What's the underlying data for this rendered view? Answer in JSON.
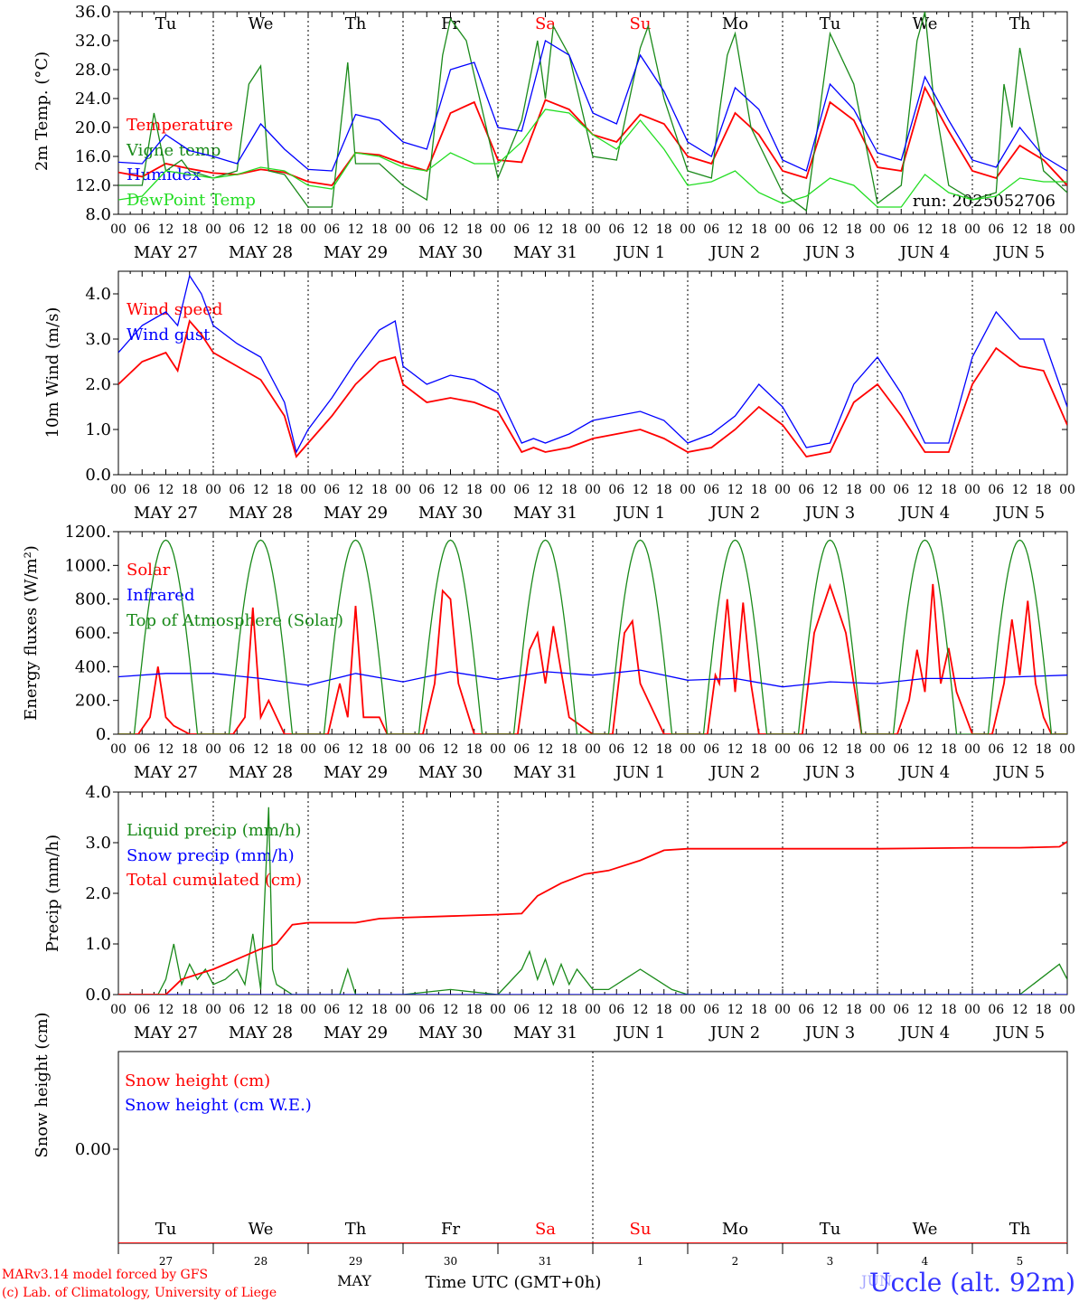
{
  "header": {
    "run": "run: 2025052706",
    "station": "Uccle (alt. 92m)"
  },
  "footer": {
    "model": "MARv3.14 model forced by GFS",
    "credit": "(c) Lab. of Climatology, University of Liege",
    "month_label": "MAY",
    "month_label_2": "JUN",
    "axis_title": "Time UTC (GMT+0h)"
  },
  "days": {
    "abbr": [
      "Tu",
      "We",
      "Th",
      "Fr",
      "Sa",
      "Su",
      "Mo",
      "Tu",
      "We",
      "Th"
    ],
    "weekend_color": "#ff0000",
    "weekday_color": "#000000",
    "weekend_flags": [
      false,
      false,
      false,
      false,
      true,
      true,
      false,
      false,
      false,
      false
    ],
    "date_labels": [
      "MAY 27",
      "MAY 28",
      "MAY 29",
      "MAY 30",
      "MAY 31",
      "JUN  1",
      "JUN  2",
      "JUN  3",
      "JUN  4",
      "JUN  5"
    ],
    "day_numbers": [
      "27",
      "28",
      "29",
      "30",
      "31",
      "1",
      "2",
      "3",
      "4",
      "5"
    ],
    "hour_ticks": [
      "00",
      "06",
      "12",
      "18"
    ]
  },
  "colors": {
    "red": "#ff0000",
    "green_dark": "#1a8a1a",
    "blue": "#0000ff",
    "green_light": "#22dd22"
  },
  "chart_data": [
    {
      "type": "line",
      "ylabel": "2m Temp. (°C)",
      "ylim": [
        8,
        36
      ],
      "yticks": [
        "8.0",
        "12.0",
        "16.0",
        "20.0",
        "24.0",
        "28.0",
        "32.0",
        "36.0"
      ],
      "x_unit": "hours since May 27 00 UTC",
      "series": [
        {
          "name": "Temperature",
          "color": "#ff0000",
          "x": [
            0,
            6,
            12,
            18,
            24,
            30,
            36,
            42,
            48,
            54,
            60,
            66,
            72,
            78,
            84,
            90,
            96,
            102,
            108,
            114,
            120,
            126,
            132,
            138,
            144,
            150,
            156,
            162,
            168,
            174,
            180,
            186,
            192,
            198,
            204,
            210,
            216,
            222,
            228,
            234,
            240
          ],
          "y": [
            13.8,
            13.2,
            15.0,
            14.3,
            13.7,
            13.5,
            14.2,
            13.8,
            12.5,
            12.0,
            16.5,
            16.2,
            15.0,
            14.0,
            22.0,
            23.5,
            15.5,
            15.2,
            23.8,
            22.5,
            19.0,
            18.0,
            21.8,
            20.5,
            16.0,
            15.0,
            22.0,
            19.0,
            14.0,
            13.0,
            23.5,
            21.0,
            14.5,
            14.0,
            25.5,
            19.5,
            14.0,
            13.0,
            17.5,
            15.5,
            12.0
          ]
        },
        {
          "name": "Vigne temp",
          "color": "#1a8a1a",
          "x": [
            0,
            6,
            9,
            12,
            16,
            18,
            24,
            30,
            33,
            36,
            38,
            42,
            48,
            54,
            58,
            60,
            66,
            72,
            78,
            82,
            84,
            88,
            96,
            102,
            106,
            108,
            110,
            114,
            120,
            126,
            132,
            134,
            138,
            144,
            150,
            152,
            154,
            156,
            160,
            168,
            174,
            180,
            186,
            192,
            198,
            200,
            202,
            204,
            206,
            210,
            216,
            222,
            224,
            226,
            228,
            234,
            240
          ],
          "y": [
            12.0,
            12.0,
            22.0,
            14.0,
            15.5,
            14.0,
            13.0,
            14.0,
            26.0,
            28.5,
            14.0,
            13.5,
            9.0,
            9.0,
            29.0,
            15.0,
            15.0,
            12.0,
            10.0,
            30.0,
            35.0,
            32.0,
            13.0,
            21.0,
            32.0,
            24.0,
            34.0,
            30.0,
            16.0,
            15.5,
            31.0,
            34.0,
            24.0,
            14.0,
            13.0,
            22.0,
            30.0,
            33.0,
            20.0,
            11.0,
            8.5,
            33.0,
            26.0,
            9.5,
            12.0,
            22.0,
            32.0,
            36.0,
            25.0,
            12.0,
            10.0,
            11.0,
            26.0,
            20.0,
            31.0,
            14.0,
            11.0
          ]
        },
        {
          "name": "Humidex",
          "color": "#0000ff",
          "x": [
            0,
            6,
            12,
            18,
            24,
            30,
            36,
            42,
            48,
            54,
            60,
            66,
            72,
            78,
            84,
            90,
            96,
            102,
            108,
            114,
            120,
            126,
            132,
            138,
            144,
            150,
            156,
            162,
            168,
            174,
            180,
            186,
            192,
            198,
            204,
            210,
            216,
            222,
            228,
            234,
            240
          ],
          "y": [
            15.2,
            15.0,
            19.0,
            16.8,
            16.0,
            15.0,
            20.5,
            17.0,
            14.2,
            14.0,
            21.8,
            21.0,
            18.0,
            17.0,
            28.0,
            29.0,
            20.0,
            19.5,
            32.0,
            30.0,
            22.0,
            20.5,
            30.0,
            25.0,
            18.0,
            16.0,
            25.5,
            22.5,
            15.5,
            14.0,
            26.0,
            22.5,
            16.5,
            15.5,
            27.0,
            21.0,
            15.5,
            14.5,
            20.0,
            16.0,
            14.0
          ]
        },
        {
          "name": "DewPoint Temp",
          "color": "#22dd22",
          "x": [
            0,
            6,
            12,
            18,
            24,
            30,
            36,
            42,
            48,
            54,
            60,
            66,
            72,
            78,
            84,
            90,
            96,
            102,
            108,
            114,
            120,
            126,
            132,
            138,
            144,
            150,
            156,
            162,
            168,
            174,
            180,
            186,
            192,
            198,
            204,
            210,
            216,
            222,
            228,
            234,
            240
          ],
          "y": [
            10.0,
            10.5,
            14.0,
            13.5,
            13.0,
            13.5,
            14.5,
            14.0,
            12.0,
            11.5,
            16.5,
            16.0,
            14.5,
            14.0,
            16.5,
            15.0,
            15.0,
            18.0,
            22.5,
            22.0,
            19.0,
            17.0,
            21.0,
            17.0,
            12.0,
            12.5,
            14.0,
            11.0,
            9.5,
            10.5,
            13.0,
            12.0,
            9.0,
            9.0,
            13.5,
            11.0,
            10.0,
            10.5,
            13.0,
            12.5,
            12.5
          ]
        }
      ]
    },
    {
      "type": "line",
      "ylabel": "10m Wind (m/s)",
      "ylim": [
        0,
        4.5
      ],
      "yticks": [
        "0.0",
        "1.0",
        "2.0",
        "3.0",
        "4.0"
      ],
      "series": [
        {
          "name": "Wind speed",
          "color": "#ff0000",
          "x": [
            0,
            6,
            12,
            15,
            18,
            21,
            24,
            30,
            36,
            42,
            45,
            48,
            54,
            60,
            66,
            70,
            72,
            78,
            84,
            90,
            96,
            102,
            105,
            108,
            114,
            120,
            126,
            132,
            138,
            144,
            150,
            156,
            162,
            168,
            174,
            180,
            186,
            192,
            198,
            204,
            210,
            216,
            222,
            228,
            234,
            238,
            240
          ],
          "y": [
            2.0,
            2.5,
            2.7,
            2.3,
            3.4,
            3.1,
            2.7,
            2.4,
            2.1,
            1.3,
            0.4,
            0.7,
            1.3,
            2.0,
            2.5,
            2.6,
            2.0,
            1.6,
            1.7,
            1.6,
            1.4,
            0.5,
            0.6,
            0.5,
            0.6,
            0.8,
            0.9,
            1.0,
            0.8,
            0.5,
            0.6,
            1.0,
            1.5,
            1.1,
            0.4,
            0.5,
            1.6,
            2.0,
            1.3,
            0.5,
            0.5,
            2.0,
            2.8,
            2.4,
            2.3,
            1.5,
            1.1
          ]
        },
        {
          "name": "Wind gust",
          "color": "#0000ff",
          "x": [
            0,
            6,
            12,
            15,
            18,
            21,
            24,
            30,
            36,
            42,
            45,
            48,
            54,
            60,
            66,
            70,
            72,
            78,
            84,
            90,
            96,
            102,
            105,
            108,
            114,
            120,
            126,
            132,
            138,
            144,
            150,
            156,
            162,
            168,
            174,
            180,
            186,
            192,
            198,
            204,
            210,
            216,
            222,
            228,
            234,
            238,
            240
          ],
          "y": [
            2.7,
            3.3,
            3.6,
            3.3,
            4.4,
            4.0,
            3.3,
            2.9,
            2.6,
            1.6,
            0.5,
            1.0,
            1.7,
            2.5,
            3.2,
            3.4,
            2.4,
            2.0,
            2.2,
            2.1,
            1.8,
            0.7,
            0.8,
            0.7,
            0.9,
            1.2,
            1.3,
            1.4,
            1.2,
            0.7,
            0.9,
            1.3,
            2.0,
            1.5,
            0.6,
            0.7,
            2.0,
            2.6,
            1.8,
            0.7,
            0.7,
            2.6,
            3.6,
            3.0,
            3.0,
            2.0,
            1.5
          ]
        }
      ]
    },
    {
      "type": "line",
      "ylabel": "Energy fluxes (W/m²)",
      "ylim": [
        0,
        1200
      ],
      "yticks": [
        "0.",
        "200.",
        "400.",
        "600.",
        "800.",
        "1000.",
        "1200."
      ],
      "series": [
        {
          "name": "Solar",
          "color": "#ff0000",
          "x": [
            0,
            5,
            8,
            10,
            12,
            14,
            18,
            24,
            29,
            32,
            34,
            36,
            38,
            40,
            42,
            44,
            48,
            53,
            56,
            58,
            60,
            62,
            64,
            66,
            68,
            72,
            77,
            80,
            82,
            84,
            86,
            90,
            96,
            101,
            104,
            106,
            108,
            110,
            114,
            120,
            125,
            128,
            130,
            132,
            134,
            138,
            144,
            149,
            151,
            152,
            154,
            156,
            158,
            160,
            162,
            168,
            173,
            176,
            180,
            184,
            188,
            192,
            197,
            200,
            202,
            204,
            206,
            208,
            210,
            212,
            216,
            221,
            224,
            226,
            228,
            230,
            232,
            234,
            236,
            240
          ],
          "y": [
            0,
            0,
            100,
            400,
            100,
            50,
            0,
            0,
            0,
            100,
            750,
            100,
            200,
            100,
            0,
            0,
            0,
            0,
            300,
            100,
            760,
            100,
            100,
            100,
            0,
            0,
            0,
            300,
            850,
            800,
            300,
            0,
            0,
            0,
            500,
            600,
            300,
            640,
            100,
            0,
            0,
            600,
            670,
            300,
            200,
            0,
            0,
            0,
            350,
            300,
            800,
            250,
            780,
            300,
            0,
            0,
            0,
            600,
            880,
            600,
            0,
            0,
            0,
            200,
            500,
            250,
            890,
            300,
            510,
            250,
            0,
            0,
            300,
            680,
            350,
            790,
            300,
            100,
            0,
            0
          ]
        },
        {
          "name": "Infrared",
          "color": "#0000ff",
          "x": [
            0,
            12,
            24,
            36,
            48,
            60,
            72,
            84,
            96,
            108,
            120,
            132,
            144,
            156,
            168,
            180,
            192,
            204,
            216,
            228,
            240
          ],
          "y": [
            340,
            360,
            360,
            330,
            290,
            360,
            310,
            370,
            325,
            370,
            350,
            380,
            320,
            330,
            280,
            310,
            300,
            330,
            330,
            340,
            350
          ]
        },
        {
          "name": "Top of Atmosphere (Solar)",
          "color": "#1a8a1a",
          "x": [],
          "y": []
        }
      ]
    },
    {
      "type": "line",
      "ylabel": "Precip (mm/h)",
      "ylim": [
        0,
        4
      ],
      "yticks": [
        "0.0",
        "1.0",
        "2.0",
        "3.0",
        "4.0"
      ],
      "series": [
        {
          "name": "Liquid precip (mm/h)",
          "color": "#1a8a1a",
          "x": [
            0,
            10,
            12,
            14,
            16,
            18,
            20,
            22,
            24,
            27,
            30,
            32,
            34,
            36,
            38,
            39,
            40,
            42,
            44,
            48,
            56,
            58,
            60,
            72,
            84,
            96,
            102,
            104,
            106,
            108,
            110,
            112,
            114,
            116,
            118,
            120,
            124,
            128,
            132,
            136,
            140,
            144,
            168,
            216,
            228,
            238,
            240
          ],
          "y": [
            0,
            0,
            0.3,
            1.0,
            0.2,
            0.6,
            0.3,
            0.5,
            0.2,
            0.3,
            0.5,
            0.2,
            1.2,
            0.1,
            3.7,
            0.5,
            0.2,
            0.1,
            0,
            0,
            0,
            0.5,
            0,
            0,
            0.1,
            0,
            0.5,
            0.85,
            0.3,
            0.7,
            0.2,
            0.6,
            0.2,
            0.5,
            0.3,
            0.1,
            0.1,
            0.3,
            0.5,
            0.3,
            0.1,
            0,
            0,
            0,
            0,
            0.6,
            0.3
          ]
        },
        {
          "name": "Snow precip (mm/h)",
          "color": "#0000ff",
          "x": [
            0,
            240
          ],
          "y": [
            0,
            0
          ]
        },
        {
          "name": "Total cumulated (cm)",
          "color": "#ff0000",
          "x": [
            0,
            12,
            16,
            24,
            30,
            36,
            40,
            44,
            48,
            60,
            66,
            72,
            84,
            96,
            102,
            106,
            112,
            118,
            124,
            132,
            138,
            144,
            168,
            192,
            216,
            228,
            238,
            240
          ],
          "y": [
            0,
            0,
            0.3,
            0.5,
            0.7,
            0.9,
            1.0,
            1.38,
            1.42,
            1.42,
            1.5,
            1.52,
            1.55,
            1.58,
            1.6,
            1.95,
            2.2,
            2.38,
            2.45,
            2.65,
            2.85,
            2.88,
            2.88,
            2.88,
            2.9,
            2.9,
            2.92,
            3.02
          ]
        }
      ]
    },
    {
      "type": "line",
      "ylabel": "Snow height (cm)",
      "yticks": [
        "0.00"
      ],
      "series": [
        {
          "name": "Snow height (cm)",
          "color": "#ff0000",
          "x": [
            0,
            240
          ],
          "y": [
            0,
            0
          ]
        },
        {
          "name": "Snow height (cm W.E.)",
          "color": "#0000ff",
          "x": [],
          "y": []
        }
      ]
    }
  ]
}
